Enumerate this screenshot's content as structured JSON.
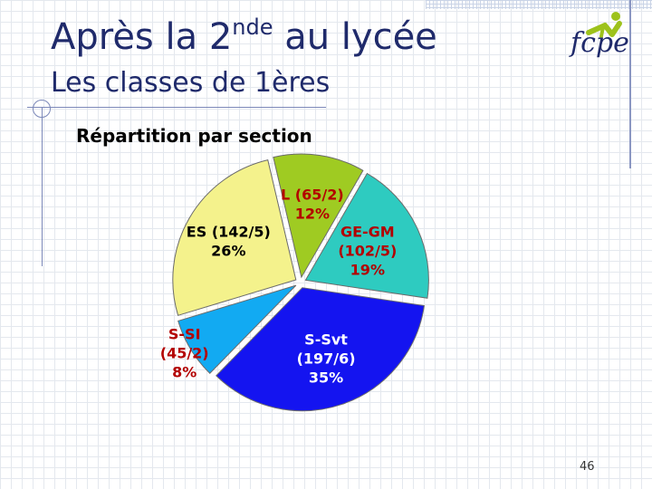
{
  "slide": {
    "title_main": "Après la 2",
    "title_sup": "nde",
    "title_rest": " au lycée",
    "subtitle": "Les classes de 1ères",
    "chart_heading": "Répartition par section",
    "page_number": "46",
    "logo_text": "fcpe"
  },
  "chart_data": {
    "type": "pie",
    "title": "Répartition par section",
    "slices": [
      {
        "lines": [
          "GE-GM",
          "(102/5)",
          "19%"
        ],
        "value": 19,
        "color": "#2ecbc0"
      },
      {
        "lines": [
          "S-Svt",
          "(197/6)",
          "35%"
        ],
        "value": 35,
        "color": "#1414f0"
      },
      {
        "lines": [
          "S-SI",
          "(45/2)",
          "8%"
        ],
        "value": 8,
        "color": "#12aaf2"
      },
      {
        "lines": [
          "ES (142/5)",
          "26%"
        ],
        "value": 26,
        "color": "#f4f28c"
      },
      {
        "lines": [
          "L (65/2)",
          "12%"
        ],
        "value": 12,
        "color": "#9fcb22"
      }
    ],
    "label_colors": [
      "#b30000",
      "#ffffff",
      "#b30000",
      "#000000",
      "#b30000"
    ],
    "start_angle_deg": 30,
    "exploded": true
  }
}
